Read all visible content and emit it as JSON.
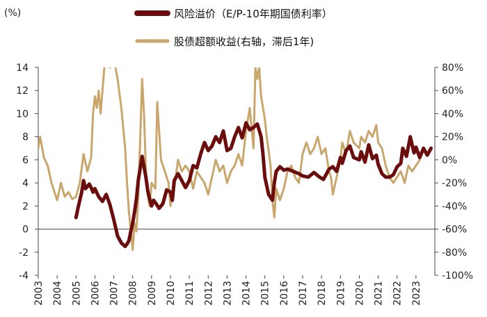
{
  "chart_data": {
    "type": "line",
    "unit_label": "(%)",
    "colors": {
      "risk_premium": "#6B0D0D",
      "excess_return": "#C9A66B"
    },
    "x_ticks": [
      "2003",
      "2004",
      "2005",
      "2006",
      "2007",
      "2008",
      "2009",
      "2010",
      "2011",
      "2012",
      "2013",
      "2014",
      "2015",
      "2016",
      "2017",
      "2018",
      "2019",
      "2020",
      "2021",
      "2022",
      "2023"
    ],
    "xlim": [
      2003,
      2024
    ],
    "y_left": {
      "ylim": [
        -4,
        14
      ],
      "ticks": [
        "-4",
        "-2",
        "0",
        "2",
        "4",
        "6",
        "8",
        "10",
        "12",
        "14"
      ]
    },
    "y_right": {
      "ylim": [
        -100,
        80
      ],
      "ticks": [
        "-100%",
        "-80%",
        "-60%",
        "-40%",
        "-20%",
        "0%",
        "20%",
        "40%",
        "60%",
        "80%"
      ]
    },
    "series": [
      {
        "key": "risk_premium",
        "name": "风险溢价（E/P-10年期国债利率）",
        "axis": "left",
        "x": [
          2005.0,
          2005.1,
          2005.3,
          2005.4,
          2005.5,
          2005.7,
          2005.8,
          2005.9,
          2006.0,
          2006.2,
          2006.4,
          2006.6,
          2006.8,
          2007.0,
          2007.2,
          2007.4,
          2007.6,
          2007.7,
          2007.8,
          2007.9,
          2008.0,
          2008.1,
          2008.2,
          2008.3,
          2008.5,
          2008.7,
          2008.8,
          2008.9,
          2009.0,
          2009.1,
          2009.2,
          2009.4,
          2009.6,
          2009.8,
          2010.0,
          2010.1,
          2010.2,
          2010.4,
          2010.6,
          2010.8,
          2011.0,
          2011.2,
          2011.4,
          2011.6,
          2011.8,
          2012.0,
          2012.2,
          2012.4,
          2012.6,
          2012.8,
          2013.0,
          2013.2,
          2013.4,
          2013.6,
          2013.8,
          2014.0,
          2014.2,
          2014.4,
          2014.6,
          2014.8,
          2014.9,
          2015.0,
          2015.2,
          2015.4,
          2015.5,
          2015.6,
          2015.8,
          2016.0,
          2016.2,
          2016.5,
          2016.8,
          2017.0,
          2017.3,
          2017.6,
          2017.9,
          2018.1,
          2018.4,
          2018.6,
          2018.8,
          2019.0,
          2019.1,
          2019.3,
          2019.5,
          2019.7,
          2020.0,
          2020.1,
          2020.3,
          2020.5,
          2020.7,
          2020.9,
          2021.0,
          2021.2,
          2021.4,
          2021.6,
          2021.8,
          2022.0,
          2022.2,
          2022.3,
          2022.5,
          2022.7,
          2022.9,
          2023.0,
          2023.2,
          2023.4,
          2023.6,
          2023.8
        ],
        "values": [
          1.0,
          1.8,
          3.2,
          4.2,
          3.5,
          3.9,
          3.6,
          3.2,
          3.5,
          2.8,
          2.4,
          3.0,
          2.1,
          0.8,
          -0.6,
          -1.2,
          -1.5,
          -1.3,
          -1.0,
          -0.2,
          0.5,
          1.5,
          2.6,
          4.3,
          6.3,
          4.5,
          3.3,
          2.6,
          2.0,
          2.5,
          2.3,
          1.8,
          2.2,
          3.4,
          3.2,
          2.5,
          4.2,
          4.8,
          4.2,
          3.6,
          4.2,
          5.5,
          5.3,
          6.5,
          7.5,
          6.8,
          7.2,
          8.0,
          7.5,
          8.5,
          6.8,
          7.0,
          8.0,
          8.8,
          7.9,
          9.2,
          8.6,
          8.8,
          9.1,
          8.0,
          6.5,
          4.5,
          3.0,
          2.5,
          4.0,
          5.0,
          5.4,
          5.1,
          5.2,
          5.0,
          4.8,
          4.6,
          4.5,
          4.9,
          4.5,
          4.3,
          5.2,
          5.4,
          5.0,
          6.2,
          5.7,
          6.8,
          7.2,
          6.2,
          6.0,
          6.7,
          5.8,
          7.3,
          6.1,
          6.4,
          5.6,
          4.8,
          4.5,
          4.5,
          4.7,
          5.4,
          5.7,
          7.0,
          6.3,
          8.0,
          6.6,
          7.1,
          6.2,
          7.0,
          6.4,
          7.0
        ]
      },
      {
        "key": "excess_return",
        "name": "股债超额收益(右轴，滞后1年)",
        "axis": "right",
        "x": [
          2003.0,
          2003.1,
          2003.3,
          2003.5,
          2003.7,
          2003.9,
          2004.0,
          2004.2,
          2004.4,
          2004.6,
          2004.8,
          2005.0,
          2005.2,
          2005.4,
          2005.6,
          2005.8,
          2005.9,
          2006.0,
          2006.1,
          2006.2,
          2006.3,
          2006.4,
          2006.5,
          2006.6,
          2006.7,
          2006.8,
          2007.0,
          2007.2,
          2007.4,
          2007.6,
          2007.7,
          2007.8,
          2007.9,
          2008.0,
          2008.1,
          2008.2,
          2008.3,
          2008.4,
          2008.5,
          2008.6,
          2008.7,
          2008.8,
          2008.9,
          2009.0,
          2009.2,
          2009.3,
          2009.5,
          2009.7,
          2009.9,
          2010.0,
          2010.2,
          2010.4,
          2010.6,
          2010.8,
          2011.0,
          2011.2,
          2011.4,
          2011.6,
          2011.8,
          2012.0,
          2012.2,
          2012.4,
          2012.6,
          2012.8,
          2013.0,
          2013.2,
          2013.4,
          2013.6,
          2013.8,
          2014.0,
          2014.2,
          2014.4,
          2014.5,
          2014.6,
          2014.7,
          2014.8,
          2015.0,
          2015.1,
          2015.3,
          2015.4,
          2015.5,
          2015.6,
          2015.8,
          2016.0,
          2016.2,
          2016.4,
          2016.6,
          2016.8,
          2017.0,
          2017.2,
          2017.4,
          2017.6,
          2017.8,
          2018.0,
          2018.2,
          2018.4,
          2018.5,
          2018.6,
          2018.8,
          2019.0,
          2019.1,
          2019.3,
          2019.5,
          2019.7,
          2020.0,
          2020.1,
          2020.3,
          2020.5,
          2020.7,
          2020.9,
          2021.0,
          2021.2,
          2021.4,
          2021.6,
          2021.8,
          2022.0,
          2022.2,
          2022.4,
          2022.6,
          2022.8,
          2023.0,
          2023.2
        ],
        "values": [
          10,
          20,
          2,
          -5,
          -20,
          -30,
          -35,
          -20,
          -32,
          -28,
          -34,
          -32,
          -20,
          5,
          -10,
          2,
          40,
          55,
          45,
          60,
          40,
          60,
          80,
          85,
          90,
          80,
          88,
          70,
          45,
          10,
          -20,
          -45,
          -60,
          -78,
          -55,
          -62,
          -30,
          20,
          70,
          40,
          -10,
          -30,
          -40,
          -20,
          -25,
          50,
          0,
          -10,
          -20,
          -40,
          -25,
          0,
          -10,
          -5,
          -10,
          -25,
          -10,
          -15,
          -20,
          -30,
          -15,
          0,
          -10,
          -5,
          -20,
          -10,
          -5,
          5,
          -5,
          25,
          45,
          10,
          80,
          70,
          80,
          55,
          35,
          20,
          -5,
          -35,
          -50,
          -25,
          -35,
          -25,
          -10,
          -5,
          -15,
          -20,
          5,
          15,
          5,
          10,
          20,
          5,
          10,
          -10,
          -15,
          -30,
          -15,
          0,
          15,
          5,
          25,
          15,
          10,
          20,
          15,
          25,
          20,
          30,
          15,
          10,
          -5,
          -15,
          -20,
          -15,
          -10,
          -20,
          -5,
          -10,
          -5,
          0
        ]
      }
    ]
  }
}
